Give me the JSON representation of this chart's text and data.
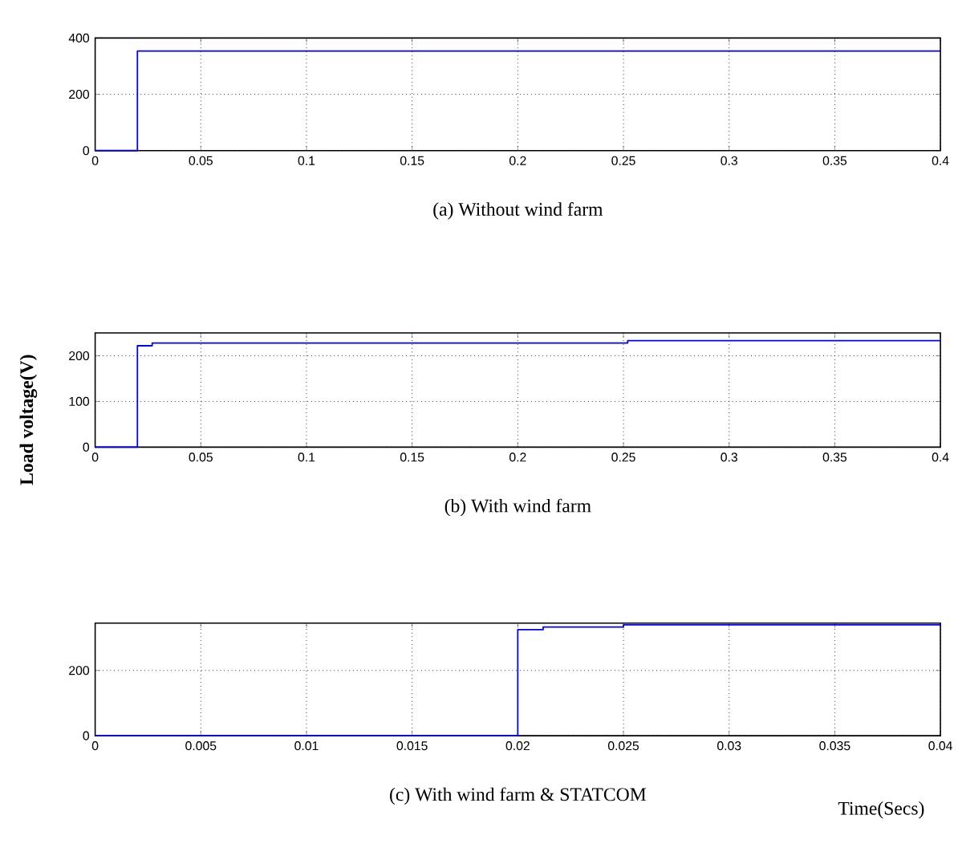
{
  "chart_data": [
    {
      "type": "line",
      "title": "(a) Without wind farm",
      "xlim": [
        0,
        0.4
      ],
      "ylim": [
        0,
        400
      ],
      "xticks": [
        0,
        0.05,
        0.1,
        0.15,
        0.2,
        0.25,
        0.3,
        0.35,
        0.4
      ],
      "yticks": [
        0,
        200,
        400
      ],
      "grid": true,
      "series": [
        {
          "color": "#0000ff",
          "x": [
            0,
            0.02,
            0.02,
            0.4
          ],
          "values": [
            0,
            0,
            354,
            354
          ]
        }
      ]
    },
    {
      "type": "line",
      "title": "(b) With wind farm",
      "ylabel": "Load voltage(V)",
      "xlim": [
        0,
        0.4
      ],
      "ylim": [
        0,
        250
      ],
      "xticks": [
        0,
        0.05,
        0.1,
        0.15,
        0.2,
        0.25,
        0.3,
        0.35,
        0.4
      ],
      "yticks": [
        0,
        100,
        200
      ],
      "grid": true,
      "series": [
        {
          "color": "#0000ff",
          "x": [
            0,
            0.02,
            0.02,
            0.027,
            0.027,
            0.252,
            0.252,
            0.4
          ],
          "values": [
            0,
            0,
            222,
            222,
            228,
            228,
            233,
            233
          ]
        }
      ]
    },
    {
      "type": "line",
      "title": "(c) With wind farm & STATCOM",
      "xlabel": "Time(Secs)",
      "xlim": [
        0,
        0.04
      ],
      "ylim": [
        0,
        345
      ],
      "xticks": [
        0,
        0.005,
        0.01,
        0.015,
        0.02,
        0.025,
        0.03,
        0.035,
        0.04
      ],
      "yticks": [
        0,
        200
      ],
      "grid": true,
      "series": [
        {
          "color": "#0000ff",
          "x": [
            0,
            0.02,
            0.02,
            0.0212,
            0.0212,
            0.025,
            0.025,
            0.04
          ],
          "values": [
            0,
            0,
            325,
            325,
            333,
            333,
            340,
            340
          ]
        }
      ]
    }
  ]
}
